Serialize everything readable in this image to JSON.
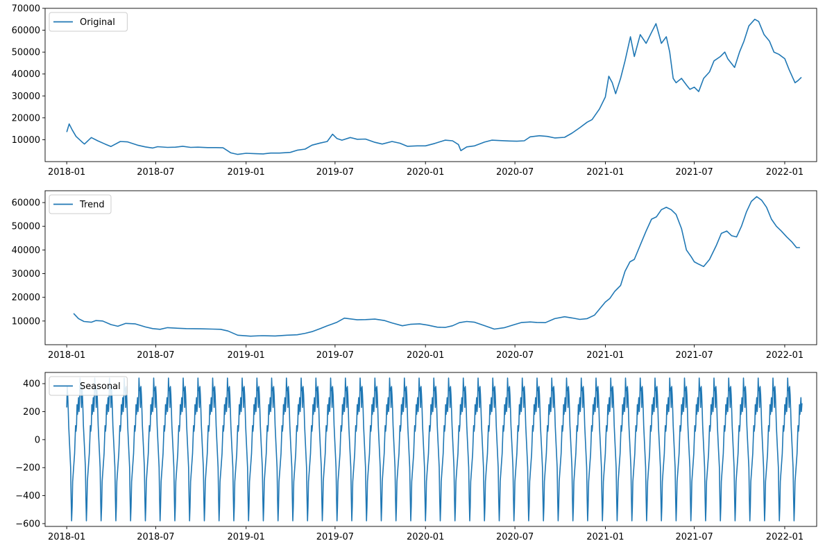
{
  "chart_data": [
    {
      "type": "line",
      "legend": {
        "label": "Original",
        "position": "upper-left"
      },
      "color": "#1f77b4",
      "xlim": [
        "2017-11-18",
        "2022-03-07"
      ],
      "ylim": [
        0,
        70000
      ],
      "yticks": [
        10000,
        20000,
        30000,
        40000,
        50000,
        60000,
        70000
      ],
      "xticks": [
        "2018-01",
        "2018-07",
        "2019-01",
        "2019-07",
        "2020-01",
        "2020-07",
        "2021-01",
        "2021-07",
        "2022-01"
      ],
      "x": [
        "2018-01-01",
        "2018-01-06",
        "2018-01-12",
        "2018-01-20",
        "2018-02-01",
        "2018-02-06",
        "2018-02-20",
        "2018-03-05",
        "2018-03-20",
        "2018-04-01",
        "2018-04-20",
        "2018-05-05",
        "2018-05-25",
        "2018-06-10",
        "2018-06-25",
        "2018-07-05",
        "2018-07-25",
        "2018-08-10",
        "2018-08-25",
        "2018-09-10",
        "2018-09-25",
        "2018-10-15",
        "2018-11-01",
        "2018-11-15",
        "2018-11-20",
        "2018-12-01",
        "2018-12-15",
        "2019-01-01",
        "2019-01-20",
        "2019-02-05",
        "2019-02-20",
        "2019-03-10",
        "2019-04-01",
        "2019-04-15",
        "2019-05-01",
        "2019-05-15",
        "2019-06-01",
        "2019-06-15",
        "2019-06-26",
        "2019-07-05",
        "2019-07-15",
        "2019-08-01",
        "2019-08-15",
        "2019-09-01",
        "2019-09-20",
        "2019-10-05",
        "2019-10-25",
        "2019-11-10",
        "2019-11-25",
        "2019-12-15",
        "2020-01-01",
        "2020-01-20",
        "2020-02-10",
        "2020-02-25",
        "2020-03-08",
        "2020-03-13",
        "2020-03-25",
        "2020-04-10",
        "2020-04-30",
        "2020-05-15",
        "2020-06-01",
        "2020-06-20",
        "2020-07-05",
        "2020-07-20",
        "2020-08-01",
        "2020-08-20",
        "2020-09-05",
        "2020-09-20",
        "2020-10-10",
        "2020-10-25",
        "2020-11-10",
        "2020-11-25",
        "2020-12-05",
        "2020-12-20",
        "2021-01-01",
        "2021-01-08",
        "2021-01-15",
        "2021-01-22",
        "2021-02-01",
        "2021-02-10",
        "2021-02-21",
        "2021-03-01",
        "2021-03-13",
        "2021-03-25",
        "2021-04-05",
        "2021-04-14",
        "2021-04-25",
        "2021-05-05",
        "2021-05-12",
        "2021-05-19",
        "2021-05-25",
        "2021-06-05",
        "2021-06-15",
        "2021-06-22",
        "2021-07-01",
        "2021-07-10",
        "2021-07-20",
        "2021-08-01",
        "2021-08-10",
        "2021-08-23",
        "2021-09-01",
        "2021-09-07",
        "2021-09-21",
        "2021-10-01",
        "2021-10-10",
        "2021-10-20",
        "2021-11-01",
        "2021-11-09",
        "2021-11-20",
        "2021-12-01",
        "2021-12-10",
        "2021-12-20",
        "2022-01-01",
        "2022-01-10",
        "2022-01-22",
        "2022-01-28",
        "2022-02-04"
      ],
      "y": [
        13500,
        17200,
        14500,
        11500,
        9000,
        8000,
        11000,
        9500,
        8000,
        6900,
        9200,
        9000,
        7500,
        6700,
        6200,
        6800,
        6500,
        6600,
        7000,
        6500,
        6600,
        6400,
        6400,
        6300,
        5600,
        4000,
        3300,
        3800,
        3600,
        3500,
        3900,
        3900,
        4200,
        5200,
        5700,
        7500,
        8500,
        9200,
        12500,
        10500,
        9800,
        11000,
        10200,
        10300,
        8800,
        8000,
        9200,
        8400,
        7000,
        7200,
        7200,
        8300,
        9800,
        9500,
        7800,
        5000,
        6700,
        7200,
        8900,
        9800,
        9600,
        9400,
        9300,
        9500,
        11300,
        11800,
        11500,
        10800,
        11100,
        13000,
        15500,
        18000,
        19200,
        24000,
        29500,
        39000,
        36000,
        31000,
        38000,
        46000,
        57000,
        48000,
        58000,
        54000,
        59000,
        63000,
        54000,
        57000,
        50000,
        38000,
        36000,
        38000,
        35000,
        33000,
        34000,
        32000,
        38000,
        41000,
        46000,
        48000,
        50000,
        47000,
        43000,
        50000,
        55000,
        62000,
        65000,
        64000,
        58000,
        55000,
        50000,
        49000,
        47000,
        42000,
        36000,
        37000,
        38500
      ]
    },
    {
      "type": "line",
      "legend": {
        "label": "Trend",
        "position": "upper-left"
      },
      "color": "#1f77b4",
      "xlim": [
        "2017-11-18",
        "2022-03-07"
      ],
      "ylim": [
        0,
        65000
      ],
      "yticks": [
        10000,
        20000,
        30000,
        40000,
        50000,
        60000
      ],
      "xticks": [
        "2018-01",
        "2018-07",
        "2019-01",
        "2019-07",
        "2020-01",
        "2020-07",
        "2021-01",
        "2021-07",
        "2022-01"
      ],
      "x": [
        "2018-01-15",
        "2018-01-25",
        "2018-02-05",
        "2018-02-20",
        "2018-03-01",
        "2018-03-15",
        "2018-04-01",
        "2018-04-15",
        "2018-05-01",
        "2018-05-20",
        "2018-06-10",
        "2018-06-25",
        "2018-07-10",
        "2018-07-25",
        "2018-08-10",
        "2018-09-01",
        "2018-10-01",
        "2018-10-25",
        "2018-11-10",
        "2018-11-25",
        "2018-12-15",
        "2019-01-10",
        "2019-02-01",
        "2019-03-01",
        "2019-03-25",
        "2019-04-15",
        "2019-05-01",
        "2019-05-15",
        "2019-06-01",
        "2019-06-15",
        "2019-06-25",
        "2019-07-05",
        "2019-07-20",
        "2019-08-15",
        "2019-09-01",
        "2019-09-20",
        "2019-10-10",
        "2019-10-25",
        "2019-11-15",
        "2019-12-01",
        "2019-12-20",
        "2020-01-05",
        "2020-01-25",
        "2020-02-10",
        "2020-02-25",
        "2020-03-10",
        "2020-03-25",
        "2020-04-10",
        "2020-05-01",
        "2020-05-20",
        "2020-06-10",
        "2020-06-30",
        "2020-07-15",
        "2020-08-01",
        "2020-08-15",
        "2020-09-01",
        "2020-09-20",
        "2020-10-10",
        "2020-10-25",
        "2020-11-10",
        "2020-11-25",
        "2020-12-10",
        "2020-12-20",
        "2021-01-01",
        "2021-01-10",
        "2021-01-20",
        "2021-02-01",
        "2021-02-10",
        "2021-02-20",
        "2021-03-01",
        "2021-03-15",
        "2021-03-25",
        "2021-04-05",
        "2021-04-15",
        "2021-04-25",
        "2021-05-05",
        "2021-05-15",
        "2021-05-25",
        "2021-06-05",
        "2021-06-15",
        "2021-06-25",
        "2021-07-01",
        "2021-07-10",
        "2021-07-20",
        "2021-08-01",
        "2021-08-15",
        "2021-08-25",
        "2021-09-05",
        "2021-09-15",
        "2021-09-25",
        "2021-10-05",
        "2021-10-15",
        "2021-10-25",
        "2021-11-05",
        "2021-11-15",
        "2021-11-25",
        "2021-12-05",
        "2021-12-15",
        "2021-12-25",
        "2022-01-05",
        "2022-01-15",
        "2022-01-25",
        "2022-02-01"
      ],
      "y": [
        13200,
        11000,
        9800,
        9500,
        10200,
        10000,
        8500,
        7800,
        9000,
        8800,
        7500,
        6800,
        6500,
        7200,
        7000,
        6800,
        6700,
        6600,
        6500,
        5800,
        4000,
        3600,
        3800,
        3700,
        4000,
        4200,
        4800,
        5500,
        6800,
        8000,
        8700,
        9500,
        11200,
        10500,
        10600,
        10800,
        10200,
        9200,
        8000,
        8600,
        8800,
        8300,
        7400,
        7300,
        8000,
        9300,
        9800,
        9500,
        8000,
        6600,
        7200,
        8500,
        9400,
        9600,
        9400,
        9300,
        11000,
        11800,
        11300,
        10700,
        11000,
        12500,
        15000,
        18000,
        19500,
        22500,
        25000,
        31000,
        35000,
        36000,
        43000,
        48000,
        53000,
        54000,
        57000,
        58000,
        57000,
        55000,
        49000,
        40000,
        37000,
        35000,
        34000,
        33000,
        36000,
        42000,
        47000,
        48000,
        46000,
        45500,
        50000,
        56000,
        60500,
        62500,
        61000,
        58000,
        53000,
        50000,
        48000,
        45500,
        43500,
        41000,
        41000
      ]
    },
    {
      "type": "line",
      "legend": {
        "label": "Seasonal",
        "position": "upper-left"
      },
      "color": "#1f77b4",
      "xlim": [
        "2017-11-18",
        "2022-03-07"
      ],
      "ylim": [
        -620,
        480
      ],
      "yticks": [
        -600,
        -400,
        -200,
        0,
        200,
        400
      ],
      "xticks": [
        "2018-01",
        "2018-07",
        "2019-01",
        "2019-07",
        "2020-01",
        "2020-07",
        "2021-01",
        "2021-07",
        "2022-01"
      ],
      "period_days": 30,
      "start": "2018-01-01",
      "end": "2022-02-05",
      "cycle_offsets_days": [
        0,
        1,
        2,
        3,
        4,
        6,
        8,
        9,
        10,
        11,
        12,
        14,
        16,
        17,
        18,
        19,
        20,
        21,
        22,
        24,
        25,
        26,
        27,
        28,
        29,
        30
      ],
      "cycle_values": [
        230,
        380,
        320,
        220,
        100,
        -50,
        -200,
        -420,
        -580,
        -480,
        -300,
        -200,
        -100,
        0,
        100,
        60,
        100,
        250,
        180,
        300,
        200,
        260,
        440,
        350,
        370,
        230
      ]
    }
  ]
}
